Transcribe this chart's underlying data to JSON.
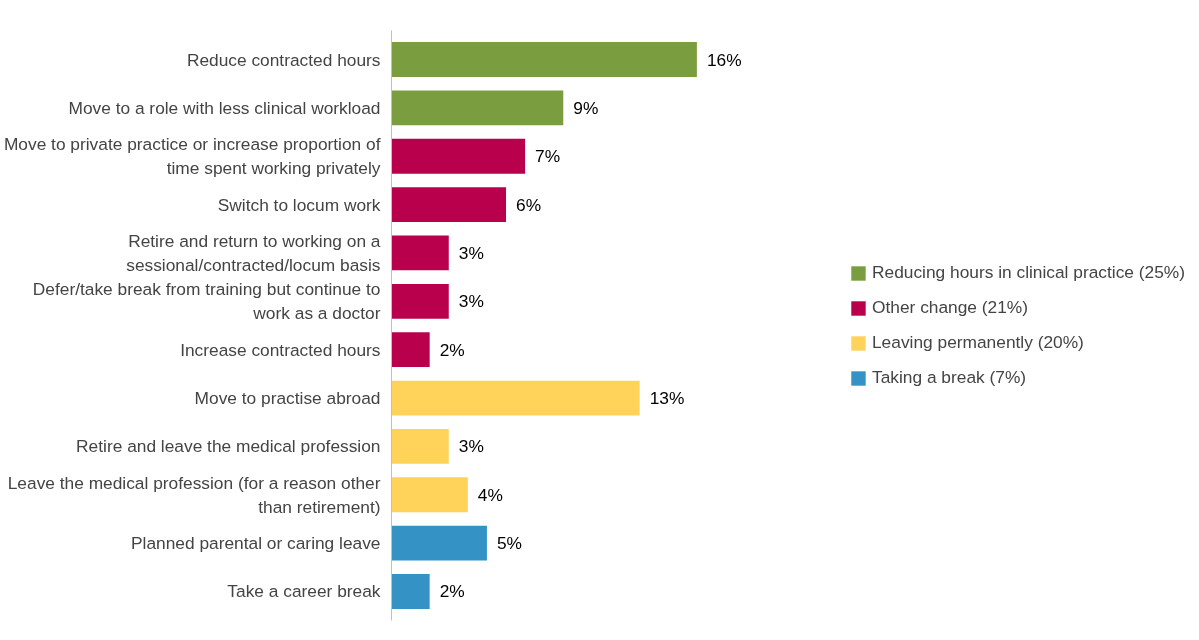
{
  "chart_data": {
    "type": "bar",
    "orientation": "horizontal",
    "stacked": true,
    "legend": "right",
    "grid": false,
    "categories": [
      "Reduce contracted hours",
      "Move to a role with less clinical workload",
      "Move to private practice or increase proportion of time spent working privately",
      "Switch to locum work",
      "Retire and return to working on a sessional/contracted/locum basis",
      "Defer/take break from training but continue to work as a doctor",
      "Increase contracted hours",
      "Move to practise abroad",
      "Retire and leave the medical profession",
      "Leave the medical profession (for a reason other than retirement)",
      "Planned parental or caring leave",
      "Take a career break"
    ],
    "series": [
      {
        "name": "Reducing hours in clinical practice (25%)",
        "color": "#7a9e3f",
        "values": [
          16,
          9,
          null,
          null,
          null,
          null,
          null,
          null,
          null,
          null,
          null,
          null
        ],
        "value_labels": [
          "16%",
          "9%",
          null,
          null,
          null,
          null,
          null,
          null,
          null,
          null,
          null,
          null
        ]
      },
      {
        "name": "Other change (21%)",
        "color": "#b8004c",
        "values": [
          null,
          null,
          7,
          6,
          3,
          3,
          2,
          null,
          null,
          null,
          null,
          null
        ],
        "value_labels": [
          null,
          null,
          "7%",
          "6%",
          "3%",
          "3%",
          "2%",
          null,
          null,
          null,
          null,
          null
        ]
      },
      {
        "name": "Leaving permanently (20%)",
        "color": "#ffd35a",
        "values": [
          null,
          null,
          null,
          null,
          null,
          null,
          null,
          13,
          3,
          4,
          null,
          null
        ],
        "value_labels": [
          null,
          null,
          null,
          null,
          null,
          null,
          null,
          "13%",
          "3%",
          "4%",
          null,
          null
        ]
      },
      {
        "name": "Taking a break (7%)",
        "color": "#3592c4",
        "values": [
          null,
          null,
          null,
          null,
          null,
          null,
          null,
          null,
          null,
          null,
          5,
          2
        ],
        "value_labels": [
          null,
          null,
          null,
          null,
          null,
          null,
          null,
          null,
          null,
          null,
          "5%",
          "2%"
        ]
      }
    ]
  }
}
